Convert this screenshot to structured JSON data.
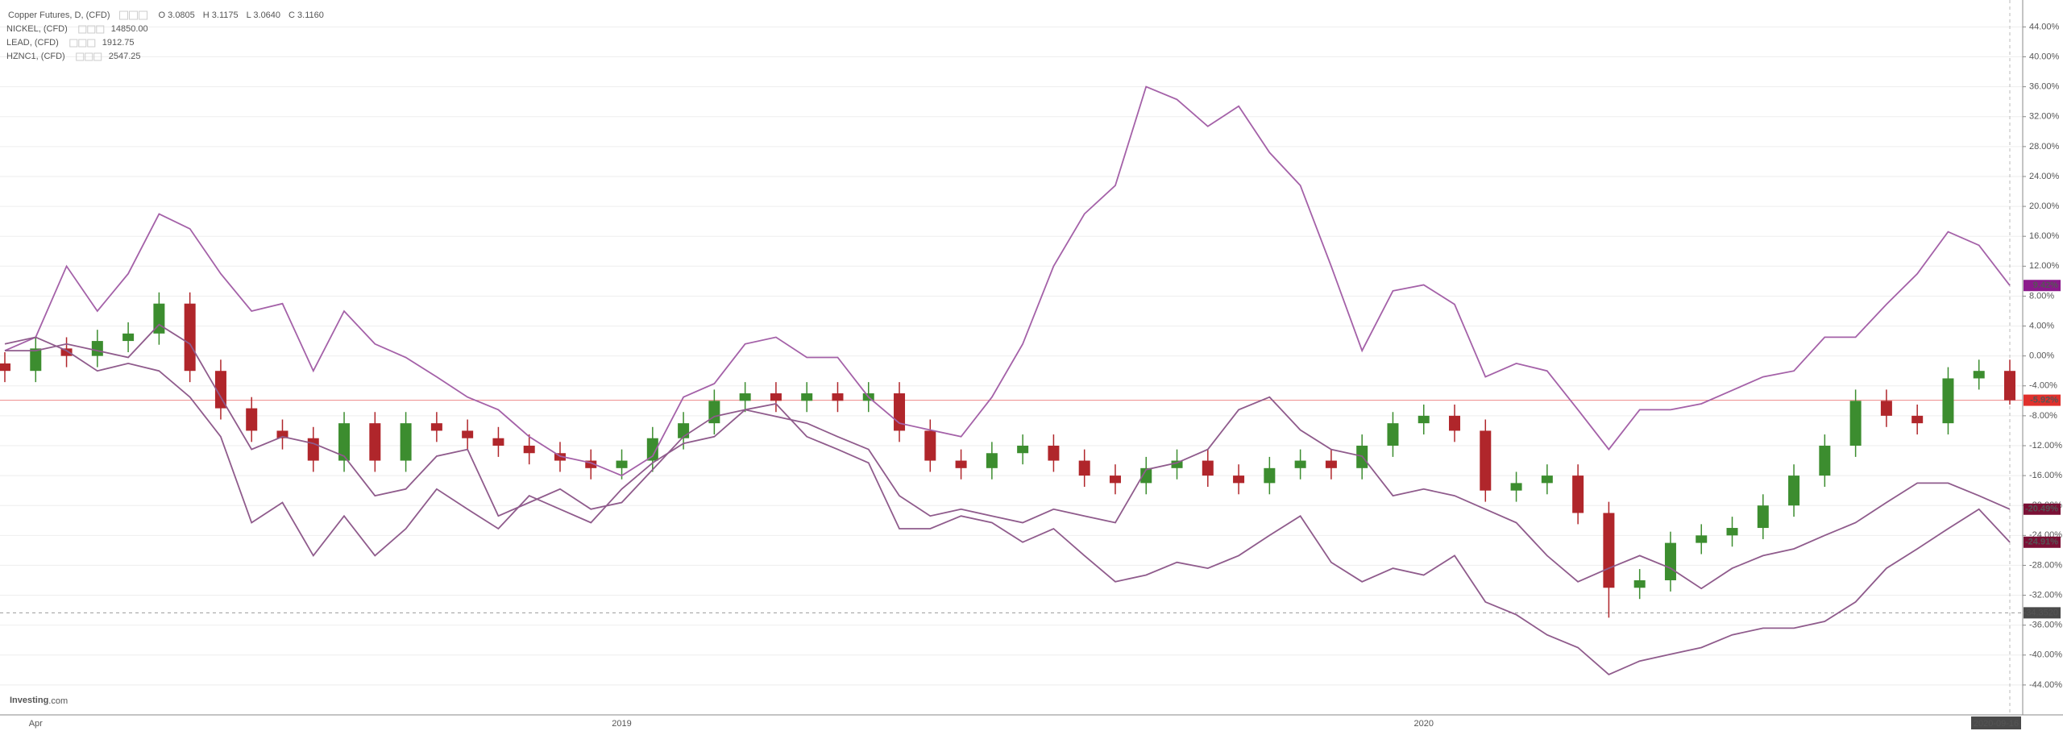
{
  "chart_data": {
    "type": "candlestick",
    "watermark": {
      "brand": "Investing",
      "suffix": ".com"
    },
    "categories": [
      null,
      "Apr",
      null,
      null,
      null,
      null,
      null,
      null,
      null,
      null,
      null,
      null,
      null,
      null,
      null,
      null,
      null,
      null,
      null,
      null,
      "2019",
      null,
      null,
      null,
      null,
      null,
      null,
      null,
      null,
      null,
      null,
      null,
      null,
      null,
      null,
      null,
      null,
      null,
      null,
      null,
      null,
      null,
      null,
      null,
      null,
      null,
      "2020",
      null,
      null,
      null,
      null,
      null,
      null,
      null,
      null,
      null,
      null,
      null,
      null,
      null,
      null,
      null,
      null,
      null,
      null,
      "2020-09-16"
    ],
    "ylim": [
      -48,
      47.6
    ],
    "yticks": [
      {
        "value": -44,
        "label": "-44.00%"
      },
      {
        "value": -40,
        "label": "-40.00%"
      },
      {
        "value": -36,
        "label": "-36.00%"
      },
      {
        "value": -32,
        "label": "-32.00%"
      },
      {
        "value": -28,
        "label": "-28.00%"
      },
      {
        "value": -24,
        "label": "-24.00%"
      },
      {
        "value": -20,
        "label": "-20.00%"
      },
      {
        "value": -16,
        "label": "-16.00%"
      },
      {
        "value": -12,
        "label": "-12.00%"
      },
      {
        "value": -8,
        "label": "-8.00%"
      },
      {
        "value": -4,
        "label": "-4.00%"
      },
      {
        "value": 0,
        "label": "0.00%"
      },
      {
        "value": 4,
        "label": "4.00%"
      },
      {
        "value": 8,
        "label": "8.00%"
      },
      {
        "value": 12,
        "label": "12.00%"
      },
      {
        "value": 16,
        "label": "16.00%"
      },
      {
        "value": 20,
        "label": "20.00%"
      },
      {
        "value": 24,
        "label": "24.00%"
      },
      {
        "value": 28,
        "label": "28.00%"
      },
      {
        "value": 32,
        "label": "32.00%"
      },
      {
        "value": 36,
        "label": "36.00%"
      },
      {
        "value": 40,
        "label": "40.00%"
      },
      {
        "value": 44,
        "label": "44.00%"
      }
    ],
    "grid": true,
    "crosshair": {
      "value": -34.352,
      "label": "-34.3520"
    },
    "series": [
      {
        "type": "candlestick",
        "name": "Copper Futures, D, (CFD)",
        "ohlc_legend": [
          "O 3.0805",
          "H 3.1175",
          "L 3.0640",
          "C 3.1160"
        ],
        "up_color": "#3c8d2f",
        "down_color": "#b0262b",
        "label_color": "#e0302c",
        "last_label": "-5.92%",
        "open": [
          -1,
          -2,
          1,
          0,
          2,
          3,
          7,
          -2,
          -7,
          -10,
          -11,
          -14,
          -9,
          -14,
          -9,
          -10,
          -11,
          -12,
          -13,
          -14,
          -15,
          -14,
          -11,
          -9,
          -6,
          -5,
          -6,
          -5,
          -6,
          -5,
          -10,
          -14,
          -15,
          -13,
          -12,
          -14,
          -16,
          -17,
          -15,
          -14,
          -16,
          -17,
          -15,
          -14,
          -15,
          -12,
          -9,
          -8,
          -10,
          -18,
          -17,
          -16,
          -21,
          -31,
          -30,
          -25,
          -24,
          -23,
          -20,
          -16,
          -12,
          -6,
          -8,
          -9,
          -3,
          -2
        ],
        "high": [
          0.5,
          2.5,
          2.5,
          3.5,
          4.5,
          8.5,
          8.5,
          -0.5,
          -5.5,
          -8.5,
          -9.5,
          -7.5,
          -7.5,
          -7.5,
          -7.5,
          -8.5,
          -9.5,
          -10.5,
          -11.5,
          -12.5,
          -12.5,
          -9.5,
          -7.5,
          -4.5,
          -3.5,
          -3.5,
          -3.5,
          -3.5,
          -3.5,
          -3.5,
          -8.5,
          -12.5,
          -11.5,
          -10.5,
          -10.5,
          -12.5,
          -14.5,
          -13.5,
          -12.5,
          -12.5,
          -14.5,
          -13.5,
          -12.5,
          -12.5,
          -10.5,
          -7.5,
          -6.5,
          -6.5,
          -8.5,
          -15.5,
          -14.5,
          -14.5,
          -19.5,
          -28.5,
          -23.5,
          -22.5,
          -21.5,
          -18.5,
          -14.5,
          -10.5,
          -4.5,
          -4.5,
          -6.5,
          -1.5,
          -0.5,
          -0.5
        ],
        "low": [
          -3.5,
          -3.5,
          -1.5,
          -1.5,
          0.5,
          1.5,
          -3.5,
          -8.5,
          -11.5,
          -12.5,
          -15.5,
          -15.5,
          -15.5,
          -15.5,
          -11.5,
          -12.5,
          -13.5,
          -14.5,
          -15.5,
          -16.5,
          -16.5,
          -15.5,
          -12.5,
          -10.5,
          -7.5,
          -7.5,
          -7.5,
          -7.5,
          -7.5,
          -11.5,
          -15.5,
          -16.5,
          -16.5,
          -14.5,
          -15.5,
          -17.5,
          -18.5,
          -18.5,
          -16.5,
          -17.5,
          -18.5,
          -18.5,
          -16.5,
          -16.5,
          -16.5,
          -13.5,
          -10.5,
          -11.5,
          -19.5,
          -19.5,
          -18.5,
          -22.5,
          -35,
          -32.5,
          -31.5,
          -26.5,
          -25.5,
          -24.5,
          -21.5,
          -17.5,
          -13.5,
          -9.5,
          -10.5,
          -10.5,
          -4.5,
          -6.5
        ],
        "close": [
          -2,
          1,
          0,
          2,
          3,
          7,
          -2,
          -7,
          -10,
          -11,
          -14,
          -9,
          -14,
          -9,
          -10,
          -11,
          -12,
          -13,
          -14,
          -15,
          -14,
          -11,
          -9,
          -6,
          -5,
          -6,
          -5,
          -6,
          -5,
          -10,
          -14,
          -15,
          -13,
          -12,
          -14,
          -16,
          -17,
          -15,
          -14,
          -16,
          -17,
          -15,
          -14,
          -15,
          -12,
          -9,
          -8,
          -10,
          -18,
          -17,
          -16,
          -21,
          -31,
          -30,
          -25,
          -24,
          -23,
          -20,
          -16,
          -12,
          -6,
          -8,
          -9,
          -3,
          -2,
          -5.92
        ]
      },
      {
        "type": "line",
        "name": "NICKEL, (CFD)",
        "legend_value": "14850.00",
        "color": "#a461a8",
        "label_color": "#8b1a8b",
        "last_label": "9.42%",
        "values": [
          0.7,
          2.5,
          12,
          6,
          11,
          19,
          17,
          11,
          6,
          7,
          -2,
          6,
          1.6,
          -0.2,
          -2.8,
          -5.5,
          -7.2,
          -10.8,
          -13.4,
          -14.3,
          -16,
          -13.4,
          -5.5,
          -3.7,
          1.6,
          2.5,
          -0.2,
          -0.2,
          -5.5,
          -9,
          -9.9,
          -10.8,
          -5.5,
          1.6,
          12,
          19,
          22.8,
          36,
          34.3,
          30.7,
          33.4,
          27.2,
          22.8,
          12,
          0.7,
          8.7,
          9.5,
          6.9,
          -2.8,
          -1,
          -2,
          -7.2,
          -12.5,
          -7.2,
          -7.2,
          -6.4,
          -4.6,
          -2.8,
          -2,
          2.5,
          2.5,
          6.9,
          11,
          16.6,
          14.8,
          9.42
        ]
      },
      {
        "type": "line",
        "name": "LEAD, (CFD)",
        "legend_value": "1912.75",
        "color": "#8f5b8c",
        "label_color": "#7a1035",
        "last_label": "-20.49%",
        "values": [
          0.7,
          0.7,
          1.6,
          0.7,
          -0.2,
          4.2,
          1.6,
          -5.5,
          -12.5,
          -10.8,
          -11.7,
          -13.4,
          -18.7,
          -17.8,
          -13.4,
          -12.5,
          -21.4,
          -19.6,
          -17.8,
          -20.5,
          -19.6,
          -15.2,
          -10.8,
          -8.1,
          -7.2,
          -8.1,
          -9,
          -10.8,
          -12.5,
          -18.7,
          -21.4,
          -20.5,
          -21.4,
          -22.3,
          -20.5,
          -21.4,
          -22.3,
          -15.2,
          -14.3,
          -12.5,
          -7.2,
          -5.5,
          -9.9,
          -12.5,
          -13.4,
          -18.7,
          -17.8,
          -18.7,
          -20.5,
          -22.3,
          -26.7,
          -30.2,
          -28.4,
          -26.7,
          -28.4,
          -31.1,
          -28.4,
          -26.7,
          -25.8,
          -24,
          -22.3,
          -19.6,
          -17,
          -17,
          -18.7,
          -20.49
        ]
      },
      {
        "type": "line",
        "name": "HZNC1, (CFD)",
        "legend_value": "2547.25",
        "color": "#8f5b8c",
        "label_color": "#7a1035",
        "last_label": "-24.91%",
        "values": [
          1.6,
          2.5,
          0.7,
          -2,
          -1,
          -2,
          -5.5,
          -10.8,
          -22.3,
          -19.6,
          -26.7,
          -21.4,
          -26.7,
          -23.1,
          -17.8,
          -20.5,
          -23.1,
          -18.7,
          -20.5,
          -22.3,
          -17.8,
          -14.3,
          -11.7,
          -10.8,
          -7.2,
          -6.4,
          -10.8,
          -12.5,
          -14.3,
          -23.1,
          -23.1,
          -21.4,
          -22.3,
          -24.9,
          -23.1,
          -26.7,
          -30.2,
          -29.3,
          -27.6,
          -28.4,
          -26.7,
          -24,
          -21.4,
          -27.6,
          -30.2,
          -28.4,
          -29.3,
          -26.7,
          -32.9,
          -34.6,
          -37.3,
          -39,
          -42.6,
          -40.8,
          -39.9,
          -39,
          -37.3,
          -36.4,
          -36.4,
          -35.5,
          -32.9,
          -28.4,
          -25.8,
          -23.1,
          -20.5,
          -24.91
        ]
      }
    ]
  }
}
